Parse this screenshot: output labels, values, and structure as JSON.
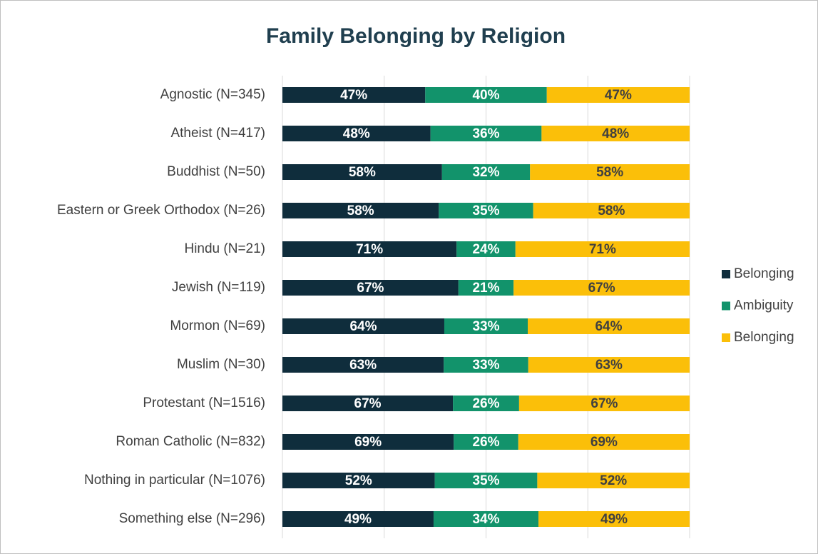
{
  "chart_data": {
    "type": "bar",
    "orientation": "horizontal",
    "stacking": "percent",
    "title": "Family Belonging by Religion",
    "categories": [
      "Agnostic (N=345)",
      "Atheist (N=417)",
      "Buddhist (N=50)",
      "Eastern or Greek Orthodox (N=26)",
      "Hindu (N=21)",
      "Jewish (N=119)",
      "Mormon (N=69)",
      "Muslim (N=30)",
      "Protestant (N=1516)",
      "Roman Catholic (N=832)",
      "Nothing in particular (N=1076)",
      "Something else (N=296)"
    ],
    "series": [
      {
        "name": "Belonging",
        "color": "#0f2d3c",
        "label_color": "#ffffff",
        "values": [
          47,
          48,
          58,
          58,
          71,
          67,
          64,
          63,
          67,
          69,
          52,
          49
        ],
        "value_labels": [
          "47%",
          "48%",
          "58%",
          "58%",
          "71%",
          "67%",
          "64%",
          "63%",
          "67%",
          "69%",
          "52%",
          "49%"
        ]
      },
      {
        "name": "Ambiguity",
        "color": "#12936b",
        "label_color": "#ffffff",
        "values": [
          40,
          36,
          32,
          35,
          24,
          21,
          33,
          33,
          26,
          26,
          35,
          34
        ],
        "value_labels": [
          "40%",
          "36%",
          "32%",
          "35%",
          "24%",
          "21%",
          "33%",
          "33%",
          "26%",
          "26%",
          "35%",
          "34%"
        ]
      },
      {
        "name": "Belonging",
        "color": "#fbbf09",
        "label_color": "#404040",
        "values": [
          47,
          48,
          58,
          58,
          71,
          67,
          64,
          63,
          67,
          69,
          52,
          49
        ],
        "value_labels": [
          "47%",
          "48%",
          "58%",
          "58%",
          "71%",
          "67%",
          "64%",
          "63%",
          "67%",
          "69%",
          "52%",
          "49%"
        ]
      }
    ],
    "xlim": [
      0,
      100
    ],
    "xticks": [
      0,
      25,
      50,
      75,
      100
    ],
    "grid": true,
    "legend": "right"
  }
}
